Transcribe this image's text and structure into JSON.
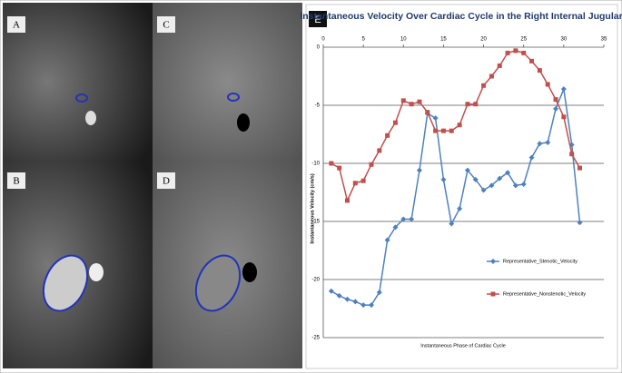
{
  "panels": [
    "A",
    "B",
    "C",
    "D",
    "E"
  ],
  "chart_data": {
    "type": "line",
    "title": "Instantaneous Velocity Over Cardiac Cycle in the Right Internal Jugular",
    "xlabel": "Instantaneous Phase of Cardiac Cycle",
    "ylabel": "Instantaneous Velocity (cm/s)",
    "x": [
      1,
      2,
      3,
      4,
      5,
      6,
      7,
      8,
      9,
      10,
      11,
      12,
      13,
      14,
      15,
      16,
      17,
      18,
      19,
      20,
      21,
      22,
      23,
      24,
      25,
      26,
      27,
      28,
      29,
      30,
      31,
      32
    ],
    "series": [
      {
        "name": "Representative_Stenotic_Velocity",
        "color": "#4f81bd",
        "marker": "diamond",
        "values": [
          -21.0,
          -21.4,
          -21.7,
          -21.9,
          -22.2,
          -22.2,
          -21.1,
          -16.6,
          -15.5,
          -14.8,
          -14.8,
          -10.6,
          -5.7,
          -6.1,
          -11.4,
          -15.2,
          -13.9,
          -10.6,
          -11.4,
          -12.3,
          -11.9,
          -11.3,
          -10.8,
          -11.9,
          -11.8,
          -9.5,
          -8.3,
          -8.2,
          -5.3,
          -3.6,
          -8.4,
          -15.1
        ]
      },
      {
        "name": "Representative_Nonstenotic_Velocity",
        "color": "#c0504d",
        "marker": "square",
        "values": [
          -10.0,
          -10.4,
          -13.2,
          -11.7,
          -11.5,
          -10.1,
          -8.9,
          -7.6,
          -6.5,
          -4.6,
          -4.9,
          -4.7,
          -5.6,
          -7.2,
          -7.2,
          -7.2,
          -6.7,
          -4.9,
          -4.9,
          -3.3,
          -2.5,
          -1.6,
          -0.5,
          -0.3,
          -0.5,
          -1.2,
          -2.0,
          -3.2,
          -4.5,
          -6.0,
          -9.2,
          -10.4
        ]
      }
    ],
    "xlim": [
      0,
      35
    ],
    "xticks": [
      0,
      5,
      10,
      15,
      20,
      25,
      30,
      35
    ],
    "ylim": [
      -25,
      0
    ],
    "yticks": [
      0,
      -5,
      -10,
      -15,
      -20,
      -25
    ],
    "grid": true
  }
}
